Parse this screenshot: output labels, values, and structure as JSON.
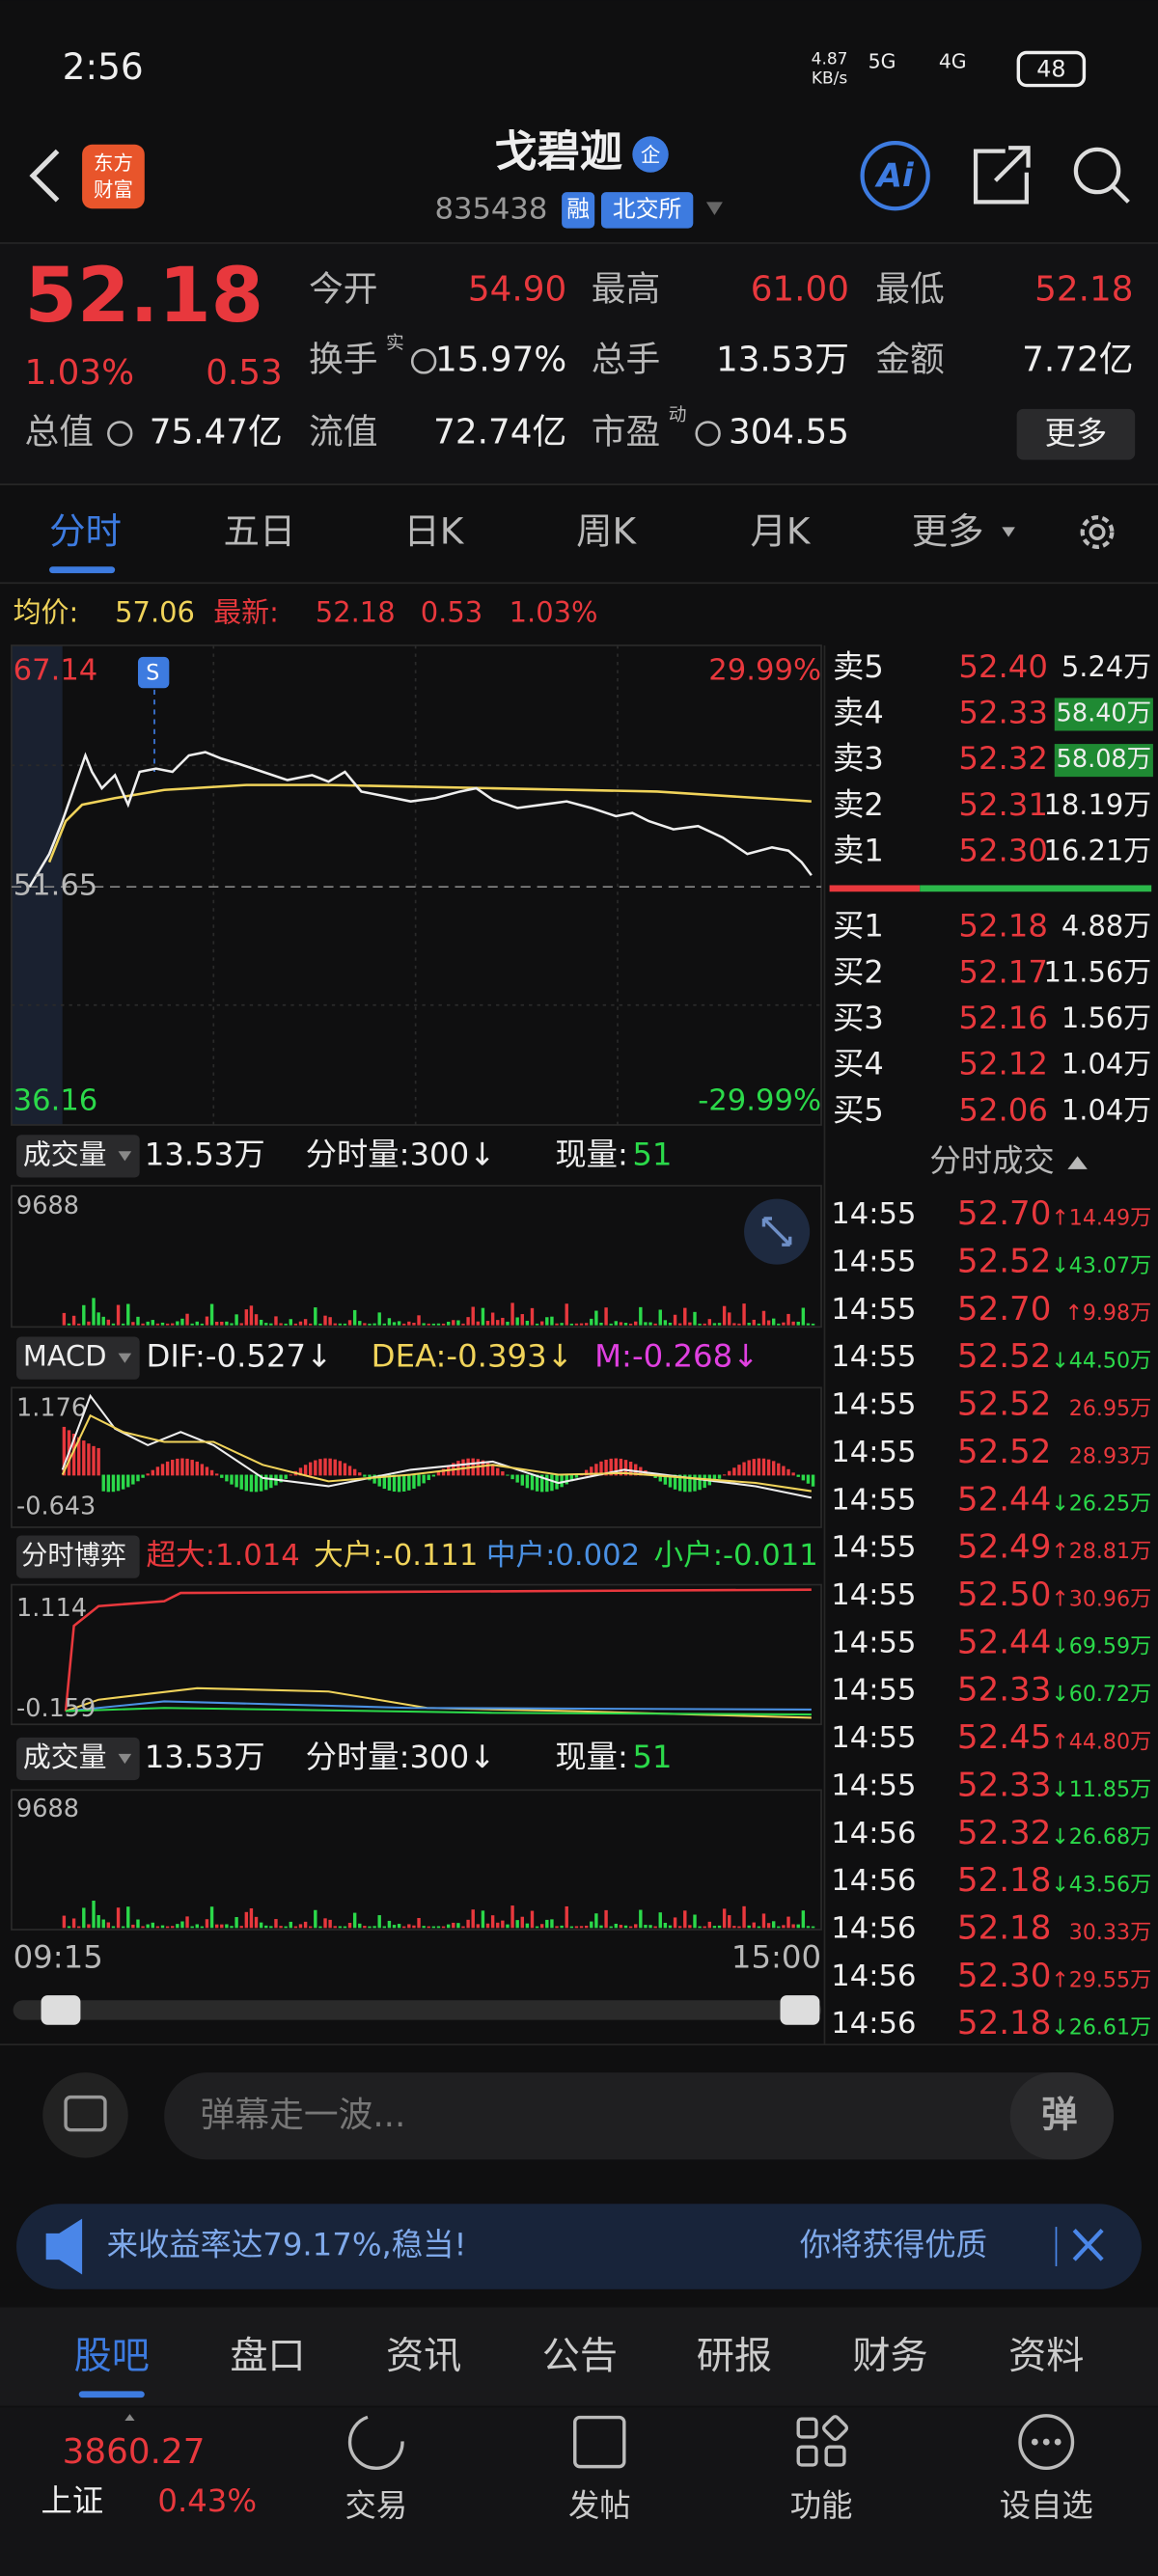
{
  "status_bar": {
    "time": "2:56",
    "net_speed": "4.87",
    "net_unit": "KB/s",
    "signal_1": "5G",
    "signal_2": "4G",
    "battery": "48"
  },
  "header": {
    "logo": [
      "东方",
      "财富"
    ],
    "title": "戈碧迦",
    "badge": "企",
    "code": "835438",
    "tags": [
      "融",
      "北交所"
    ],
    "ai": "Ai"
  },
  "quote": {
    "price": "52.18",
    "pct": "1.03%",
    "change": "0.53",
    "more": "更多",
    "fields": [
      {
        "label": "今开",
        "value": "54.90"
      },
      {
        "label": "最高",
        "value": "61.00"
      },
      {
        "label": "最低",
        "value": "52.18"
      },
      {
        "label": "换手",
        "sup": "实",
        "value": "15.97%"
      },
      {
        "label": "总手",
        "value": "13.53万"
      },
      {
        "label": "金额",
        "value": "7.72亿"
      },
      {
        "label": "总值",
        "value": "75.47亿"
      },
      {
        "label": "流值",
        "value": "72.74亿"
      },
      {
        "label": "市盈",
        "sup": "动",
        "value": "304.55"
      }
    ]
  },
  "tabs": [
    "分时",
    "五日",
    "日K",
    "周K",
    "月K",
    "更多"
  ],
  "info_line": {
    "avg_label": "均价:",
    "avg": "57.06",
    "latest_label": "最新:",
    "latest": "52.18",
    "change": "0.53",
    "pct": "1.03%"
  },
  "price_chart": {
    "top_left": "67.14",
    "top_right": "29.99%",
    "middle": "51.65",
    "bottom_left": "36.16",
    "bottom_right": "-29.99%",
    "marker": "S"
  },
  "order_book": {
    "asks": [
      {
        "label": "卖5",
        "price": "52.40",
        "volume": "5.24万"
      },
      {
        "label": "卖4",
        "price": "52.33",
        "volume": "58.40万",
        "highlight": true
      },
      {
        "label": "卖3",
        "price": "52.32",
        "volume": "58.08万",
        "highlight": true
      },
      {
        "label": "卖2",
        "price": "52.31",
        "volume": "18.19万"
      },
      {
        "label": "卖1",
        "price": "52.30",
        "volume": "16.21万"
      }
    ],
    "bids": [
      {
        "label": "买1",
        "price": "52.18",
        "volume": "4.88万"
      },
      {
        "label": "买2",
        "price": "52.17",
        "volume": "11.56万"
      },
      {
        "label": "买3",
        "price": "52.16",
        "volume": "1.56万"
      },
      {
        "label": "买4",
        "price": "52.12",
        "volume": "1.04万"
      },
      {
        "label": "买5",
        "price": "52.06",
        "volume": "1.04万"
      }
    ]
  },
  "volume_panel": {
    "name": "成交量",
    "total": "13.53万",
    "period": "分时量:300↓",
    "now_label": "现量:",
    "now": "51",
    "max": "9688"
  },
  "macd_panel": {
    "name": "MACD",
    "dif": "DIF:-0.527↓",
    "dea": "DEA:-0.393↓",
    "m": "M:-0.268↓",
    "top": "1.176",
    "bottom": "-0.643"
  },
  "game_panel": {
    "name": "分时博弈",
    "items": [
      "超大:1.014",
      "大户:-0.111",
      "中户:0.002",
      "小户:-0.011"
    ],
    "top": "1.114",
    "bottom": "-0.159"
  },
  "volume_panel_2": {
    "name": "成交量",
    "total": "13.53万",
    "period": "分时量:300↓",
    "now_label": "现量:",
    "now": "51",
    "max": "9688"
  },
  "time_axis": [
    "09:15",
    "15:00"
  ],
  "trades": {
    "title": "分时成交",
    "rows": [
      {
        "time": "14:55",
        "price": "52.70",
        "volume": "↑14.49万"
      },
      {
        "time": "14:55",
        "price": "52.52",
        "volume": "↓43.07万"
      },
      {
        "time": "14:55",
        "price": "52.70",
        "volume": "↑9.98万"
      },
      {
        "time": "14:55",
        "price": "52.52",
        "volume": "↓44.50万"
      },
      {
        "time": "14:55",
        "price": "52.52",
        "volume": "26.95万"
      },
      {
        "time": "14:55",
        "price": "52.52",
        "volume": "28.93万"
      },
      {
        "time": "14:55",
        "price": "52.44",
        "volume": "↓26.25万"
      },
      {
        "time": "14:55",
        "price": "52.49",
        "volume": "↑28.81万"
      },
      {
        "time": "14:55",
        "price": "52.50",
        "volume": "↑30.96万"
      },
      {
        "time": "14:55",
        "price": "52.44",
        "volume": "↓69.59万"
      },
      {
        "time": "14:55",
        "price": "52.33",
        "volume": "↓60.72万"
      },
      {
        "time": "14:55",
        "price": "52.45",
        "volume": "↑44.80万"
      },
      {
        "time": "14:55",
        "price": "52.33",
        "volume": "↓11.85万"
      },
      {
        "time": "14:56",
        "price": "52.32",
        "volume": "↓26.68万"
      },
      {
        "time": "14:56",
        "price": "52.18",
        "volume": "↓43.56万"
      },
      {
        "time": "14:56",
        "price": "52.18",
        "volume": "30.33万"
      },
      {
        "time": "14:56",
        "price": "52.30",
        "volume": "↑29.55万"
      },
      {
        "time": "14:56",
        "price": "52.18",
        "volume": "↓26.61万"
      }
    ]
  },
  "comment_bar": {
    "placeholder": "弹幕走一波...",
    "button": "弹"
  },
  "banner": {
    "text": "来收益率达79.17%,稳当!",
    "right_text": "你将获得优质"
  },
  "bottom_tabs": [
    "股吧",
    "盘口",
    "资讯",
    "公告",
    "研报",
    "财务",
    "资料"
  ],
  "bottom_nav": {
    "index_value": "3860.27",
    "index_name": "上证",
    "index_pct": "0.43%",
    "items": [
      "交易",
      "发帖",
      "功能",
      "设自选"
    ]
  }
}
